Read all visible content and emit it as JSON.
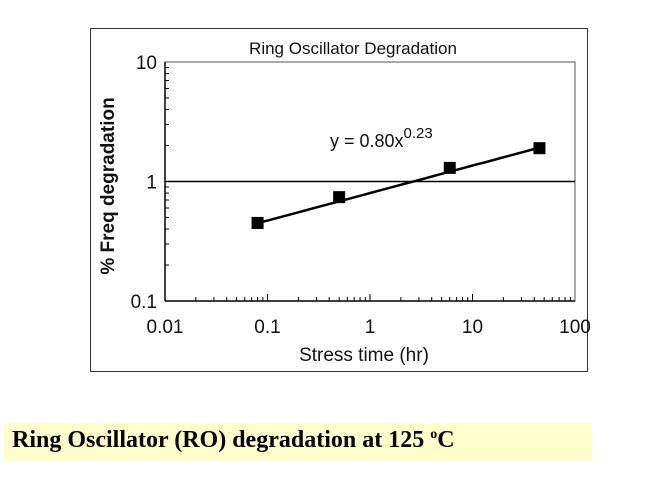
{
  "chart_data": {
    "type": "scatter",
    "title": "Ring Oscillator Degradation",
    "xlabel": "Stress time (hr)",
    "ylabel": "% Freq degradation",
    "x_scale": "log",
    "y_scale": "log",
    "xlim": [
      0.01,
      100
    ],
    "ylim": [
      0.1,
      10
    ],
    "x_ticks": [
      "0.01",
      "0.1",
      "1",
      "10",
      "100"
    ],
    "y_ticks": [
      "0.1",
      "1",
      "10"
    ],
    "reference_line_y": 1,
    "grid": false,
    "marker_color": "#000000",
    "series": [
      {
        "x": [
          0.08,
          0.5,
          6,
          45
        ],
        "y": [
          0.45,
          0.74,
          1.3,
          1.9
        ]
      }
    ],
    "fit": {
      "equation_base": "y = 0.80x",
      "equation_exponent": "0.23",
      "a": 0.8,
      "b": 0.23
    }
  },
  "caption": {
    "text_before": "Ring Oscillator (RO) degradation at 125 ",
    "superscript": "o",
    "text_after": "C",
    "background": "#ffffcc"
  }
}
